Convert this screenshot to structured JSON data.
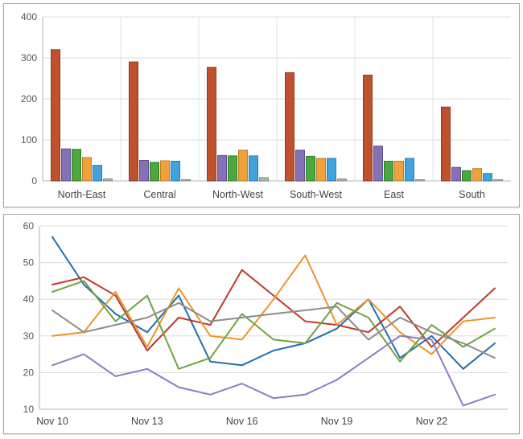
{
  "layout": {
    "background": "#ffffff",
    "panel_border": "#a6a6a6",
    "grid_color": "#dcdcdc",
    "axis_color": "#b5b5b5",
    "separator_color": "#e2e2e2",
    "tick_label_color": "#555555"
  },
  "chart_data": [
    {
      "type": "bar",
      "title": "",
      "xlabel": "",
      "ylabel": "",
      "categories": [
        "North-East",
        "Central",
        "North-West",
        "South-West",
        "East",
        "South"
      ],
      "series": [
        {
          "name": "series-red",
          "color": "#c0512e",
          "stroke": "#8e3a1f",
          "values": [
            320,
            290,
            277,
            264,
            258,
            180
          ]
        },
        {
          "name": "series-purple",
          "color": "#8571b5",
          "stroke": "#5f4e8c",
          "values": [
            78,
            50,
            62,
            75,
            85,
            33
          ]
        },
        {
          "name": "series-green",
          "color": "#4aa83e",
          "stroke": "#2f7d2a",
          "values": [
            77,
            45,
            61,
            60,
            48,
            25
          ]
        },
        {
          "name": "series-orange",
          "color": "#efa23c",
          "stroke": "#bf7c24",
          "values": [
            57,
            49,
            75,
            55,
            48,
            30
          ]
        },
        {
          "name": "series-blue",
          "color": "#41a2dc",
          "stroke": "#2b7ab0",
          "values": [
            38,
            48,
            61,
            55,
            55,
            18
          ]
        },
        {
          "name": "series-gray",
          "color": "#b3b3b3",
          "stroke": "#8a8a8a",
          "values": [
            5,
            3,
            8,
            5,
            3,
            3
          ]
        }
      ],
      "ylim": [
        0,
        400
      ],
      "yticks": [
        0,
        100,
        200,
        300,
        400
      ],
      "grid": true,
      "legend": "none"
    },
    {
      "type": "line",
      "title": "",
      "xlabel": "",
      "ylabel": "",
      "x": [
        "Nov 10",
        "Nov 11",
        "Nov 12",
        "Nov 13",
        "Nov 14",
        "Nov 15",
        "Nov 16",
        "Nov 17",
        "Nov 18",
        "Nov 19",
        "Nov 20",
        "Nov 21",
        "Nov 22",
        "Nov 23",
        "Nov 24"
      ],
      "xtick_indices": [
        0,
        3,
        6,
        9,
        12
      ],
      "series": [
        {
          "name": "series-blue",
          "color": "#1f6fae",
          "values": [
            57,
            44,
            36,
            31,
            41,
            23,
            22,
            26,
            28,
            32,
            40,
            24,
            30,
            21,
            28
          ]
        },
        {
          "name": "series-red",
          "color": "#c0392b",
          "values": [
            44,
            46,
            41,
            26,
            35,
            33,
            48,
            41,
            34,
            33,
            31,
            38,
            27,
            35,
            43
          ]
        },
        {
          "name": "series-orange",
          "color": "#e8962e",
          "values": [
            30,
            31,
            42,
            27,
            43,
            30,
            29,
            40,
            52,
            33,
            40,
            31,
            25,
            34,
            35
          ]
        },
        {
          "name": "series-green",
          "color": "#71a340",
          "values": [
            42,
            45,
            34,
            41,
            21,
            24,
            36,
            29,
            28,
            39,
            35,
            23,
            33,
            27,
            32
          ]
        },
        {
          "name": "series-gray",
          "color": "#8c8c8c",
          "values": [
            37,
            31,
            33,
            35,
            39,
            34,
            35,
            36,
            37,
            38,
            29,
            35,
            31,
            28,
            24
          ]
        },
        {
          "name": "series-purple",
          "color": "#8b7cc7",
          "values": [
            22,
            25,
            19,
            21,
            16,
            14,
            17,
            13,
            14,
            18,
            24,
            30,
            29,
            11,
            14
          ]
        }
      ],
      "ylim": [
        10,
        60
      ],
      "yticks": [
        10,
        20,
        30,
        40,
        50,
        60
      ],
      "grid": true,
      "legend": "none"
    }
  ]
}
